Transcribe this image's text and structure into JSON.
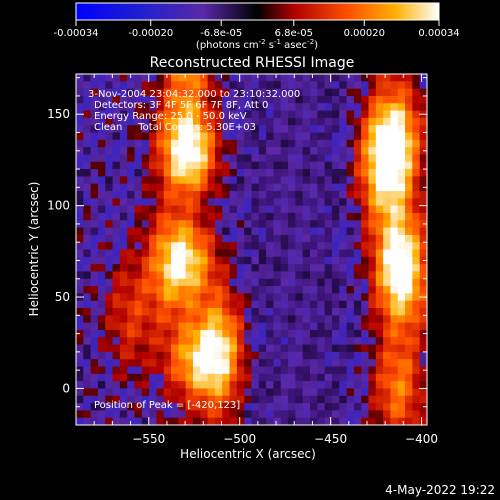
{
  "colorbar": {
    "ticks": [
      "-0.00034",
      "-0.00020",
      "-6.8e-05",
      "6.8e-05",
      "0.00020",
      "0.00034"
    ],
    "tick_values": [
      -0.00034,
      -0.0002,
      -6.8e-05,
      6.8e-05,
      0.0002,
      0.00034
    ],
    "range": [
      -0.00034,
      0.00034
    ],
    "units_main": "(photons cm",
    "units_exp1": "-2",
    "units_mid": " s",
    "units_exp2": "-1",
    "units_end": " asec",
    "units_exp3": "-2",
    "units_close": ")"
  },
  "chart_data": {
    "type": "heatmap",
    "title": "Reconstructed RHESSI Image",
    "xlabel": "Heliocentric X (arcsec)",
    "ylabel": "Heliocentric Y (arcsec)",
    "xlim": [
      -590,
      -397
    ],
    "ylim": [
      -20,
      172
    ],
    "xticks": [
      -550,
      -500,
      -450,
      -400
    ],
    "xtick_labels": [
      "−550",
      "−500",
      "−450",
      "−400"
    ],
    "yticks": [
      0,
      50,
      100,
      150
    ],
    "ytick_labels": [
      "0",
      "50",
      "100",
      "150"
    ],
    "annotations": {
      "time": "3-Nov-2004 23:04:32.000 to 23:10:32.000",
      "detectors": "Detectors: 3F 4F 5F 6F 7F 8F, Att 0",
      "energy": "Energy Range: 25.0 - 50.0 keV",
      "method": "Clean     Total Counts: 5.30E+03",
      "peak": "Position of Peak = [-420,123]"
    },
    "sources": [
      {
        "x": -530,
        "y": 140,
        "value": 0.00026
      },
      {
        "x": -537,
        "y": 66,
        "value": 0.00022
      },
      {
        "x": -512,
        "y": 20,
        "value": 0.00032
      },
      {
        "x": -420,
        "y": 123,
        "value": 0.00034
      },
      {
        "x": -410,
        "y": 60,
        "value": 0.00022
      },
      {
        "x": -560,
        "y": 40,
        "value": 0.00012
      }
    ],
    "grid": false
  },
  "footer": {
    "date": "4-May-2022 19:22"
  }
}
